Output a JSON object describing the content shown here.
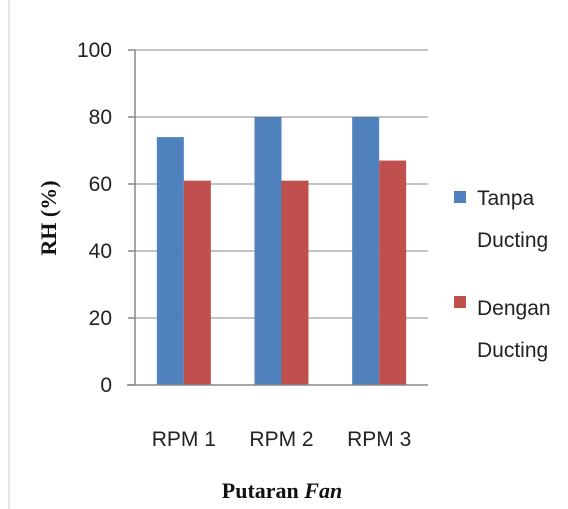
{
  "chart_data": {
    "type": "bar",
    "categories": [
      "RPM 1",
      "RPM 2",
      "RPM 3"
    ],
    "series": [
      {
        "name_line1": "Tanpa",
        "name_line2": "Ducting",
        "name": "Tanpa Ducting",
        "color": "#4F81BD",
        "values": [
          74,
          80,
          80
        ]
      },
      {
        "name_line1": "Dengan",
        "name_line2": "Ducting",
        "name": "Dengan Ducting",
        "color": "#C0504D",
        "values": [
          61,
          61,
          67
        ]
      }
    ],
    "ylabel": "RH (%)",
    "xlabel_normal": "Putaran ",
    "xlabel_italic": "Fan",
    "ylim": [
      0,
      100
    ],
    "yticks": [
      "0",
      "20",
      "40",
      "60",
      "80",
      "100"
    ],
    "grid": true,
    "legend_position": "right"
  }
}
